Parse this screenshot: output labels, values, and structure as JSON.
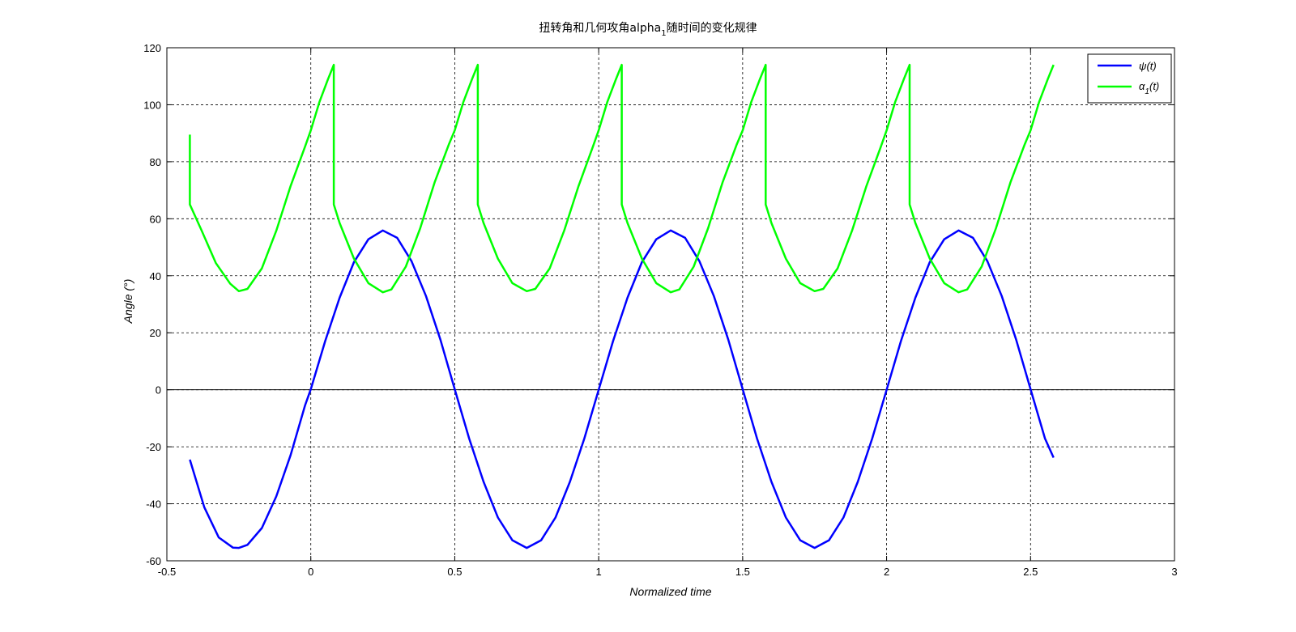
{
  "chart_data": {
    "type": "line",
    "title_main": "扭转角和几何攻角alpha",
    "title_sub": "1",
    "title_tail": "随时间的变化规律",
    "xlabel": "Normalized time",
    "ylabel": "Angle (°)",
    "xlim": [
      -0.5,
      3
    ],
    "ylim": [
      -60,
      120
    ],
    "xticks": [
      -0.5,
      0,
      0.5,
      1,
      1.5,
      2,
      2.5,
      3
    ],
    "xtick_labels": [
      "-0.5",
      "0",
      "0.5",
      "1",
      "1.5",
      "2",
      "2.5",
      "3"
    ],
    "yticks": [
      -60,
      -40,
      -20,
      0,
      20,
      40,
      60,
      80,
      100,
      120
    ],
    "ytick_labels": [
      "-60",
      "-40",
      "-20",
      "0",
      "20",
      "40",
      "60",
      "80",
      "100",
      "120"
    ],
    "grid": true,
    "legend_position": "top-right",
    "legend": [
      {
        "label_main": "ψ(t)",
        "label_sub": "",
        "label_tail": ""
      },
      {
        "label_main": "α",
        "label_sub": "1",
        "label_tail": "(t)"
      }
    ],
    "series": [
      {
        "color": "#0000ff",
        "x": [
          -0.42,
          -0.37,
          -0.32,
          -0.27,
          -0.25,
          -0.22,
          -0.17,
          -0.12,
          -0.07,
          -0.02,
          0,
          0.05,
          0.1,
          0.15,
          0.2,
          0.25,
          0.3,
          0.35,
          0.4,
          0.45,
          0.5,
          0.55,
          0.6,
          0.65,
          0.7,
          0.75,
          0.8,
          0.85,
          0.9,
          0.95,
          1.0,
          1.05,
          1.1,
          1.15,
          1.2,
          1.25,
          1.3,
          1.35,
          1.4,
          1.45,
          1.5,
          1.55,
          1.6,
          1.65,
          1.7,
          1.75,
          1.8,
          1.85,
          1.9,
          1.95,
          2.0,
          2.05,
          2.1,
          2.15,
          2.2,
          2.25,
          2.3,
          2.35,
          2.4,
          2.45,
          2.5,
          2.55,
          2.58
        ],
        "y": [
          -24.5,
          -41.2,
          -51.8,
          -55.4,
          -55.5,
          -54.4,
          -48.5,
          -37.4,
          -22.9,
          -5.5,
          0.2,
          17.1,
          32.3,
          44.8,
          52.8,
          55.9,
          53.3,
          45.1,
          32.9,
          17.6,
          0.2,
          -17.1,
          -32.3,
          -44.8,
          -52.8,
          -55.5,
          -52.8,
          -44.8,
          -32.3,
          -17.1,
          0,
          17.1,
          32.3,
          44.8,
          52.8,
          55.9,
          53.3,
          45.1,
          32.9,
          17.6,
          0.2,
          -17.1,
          -32.3,
          -44.8,
          -52.8,
          -55.5,
          -52.8,
          -44.8,
          -32.3,
          -17.1,
          0,
          17.1,
          32.3,
          44.8,
          52.8,
          55.9,
          53.3,
          45.1,
          32.9,
          17.6,
          0.2,
          -17.1,
          -23.8
        ]
      },
      {
        "color": "#00ff00",
        "x": [
          -0.42,
          -0.42,
          -0.38,
          -0.33,
          -0.28,
          -0.25,
          -0.22,
          -0.17,
          -0.12,
          -0.07,
          -0.02,
          0,
          0.03,
          0.06,
          0.08,
          0.08,
          0.1,
          0.15,
          0.2,
          0.25,
          0.28,
          0.33,
          0.38,
          0.43,
          0.48,
          0.5,
          0.53,
          0.56,
          0.58,
          0.58,
          0.6,
          0.65,
          0.7,
          0.75,
          0.78,
          0.83,
          0.88,
          0.93,
          0.98,
          1.0,
          1.03,
          1.06,
          1.08,
          1.08,
          1.1,
          1.15,
          1.2,
          1.25,
          1.28,
          1.33,
          1.38,
          1.43,
          1.48,
          1.5,
          1.53,
          1.56,
          1.58,
          1.58,
          1.6,
          1.65,
          1.7,
          1.75,
          1.78,
          1.83,
          1.88,
          1.93,
          1.98,
          2.0,
          2.03,
          2.06,
          2.08,
          2.08,
          2.1,
          2.15,
          2.2,
          2.25,
          2.28,
          2.33,
          2.38,
          2.43,
          2.48,
          2.5,
          2.53,
          2.56,
          2.58
        ],
        "y": [
          89.5,
          65,
          56,
          44.5,
          37.2,
          34.6,
          35.4,
          42.6,
          55.8,
          71.5,
          85.3,
          91,
          101,
          109,
          114,
          65,
          58.5,
          46,
          37.4,
          34.2,
          35.2,
          43.2,
          56.7,
          72.7,
          86.2,
          91,
          101,
          109,
          114,
          65,
          58.5,
          46,
          37.4,
          34.6,
          35.4,
          42.6,
          55.8,
          71.5,
          85.3,
          91,
          101,
          109,
          114,
          65,
          58.5,
          46,
          37.4,
          34.2,
          35.2,
          43.2,
          56.7,
          72.7,
          86.2,
          91,
          101,
          109,
          114,
          65,
          58.5,
          46,
          37.4,
          34.6,
          35.4,
          42.6,
          55.8,
          71.5,
          85.3,
          91,
          101,
          109,
          114,
          65,
          58.5,
          46,
          37.4,
          34.2,
          35.2,
          43.2,
          56.7,
          72.7,
          86.2,
          91,
          101,
          109,
          114
        ]
      }
    ]
  }
}
